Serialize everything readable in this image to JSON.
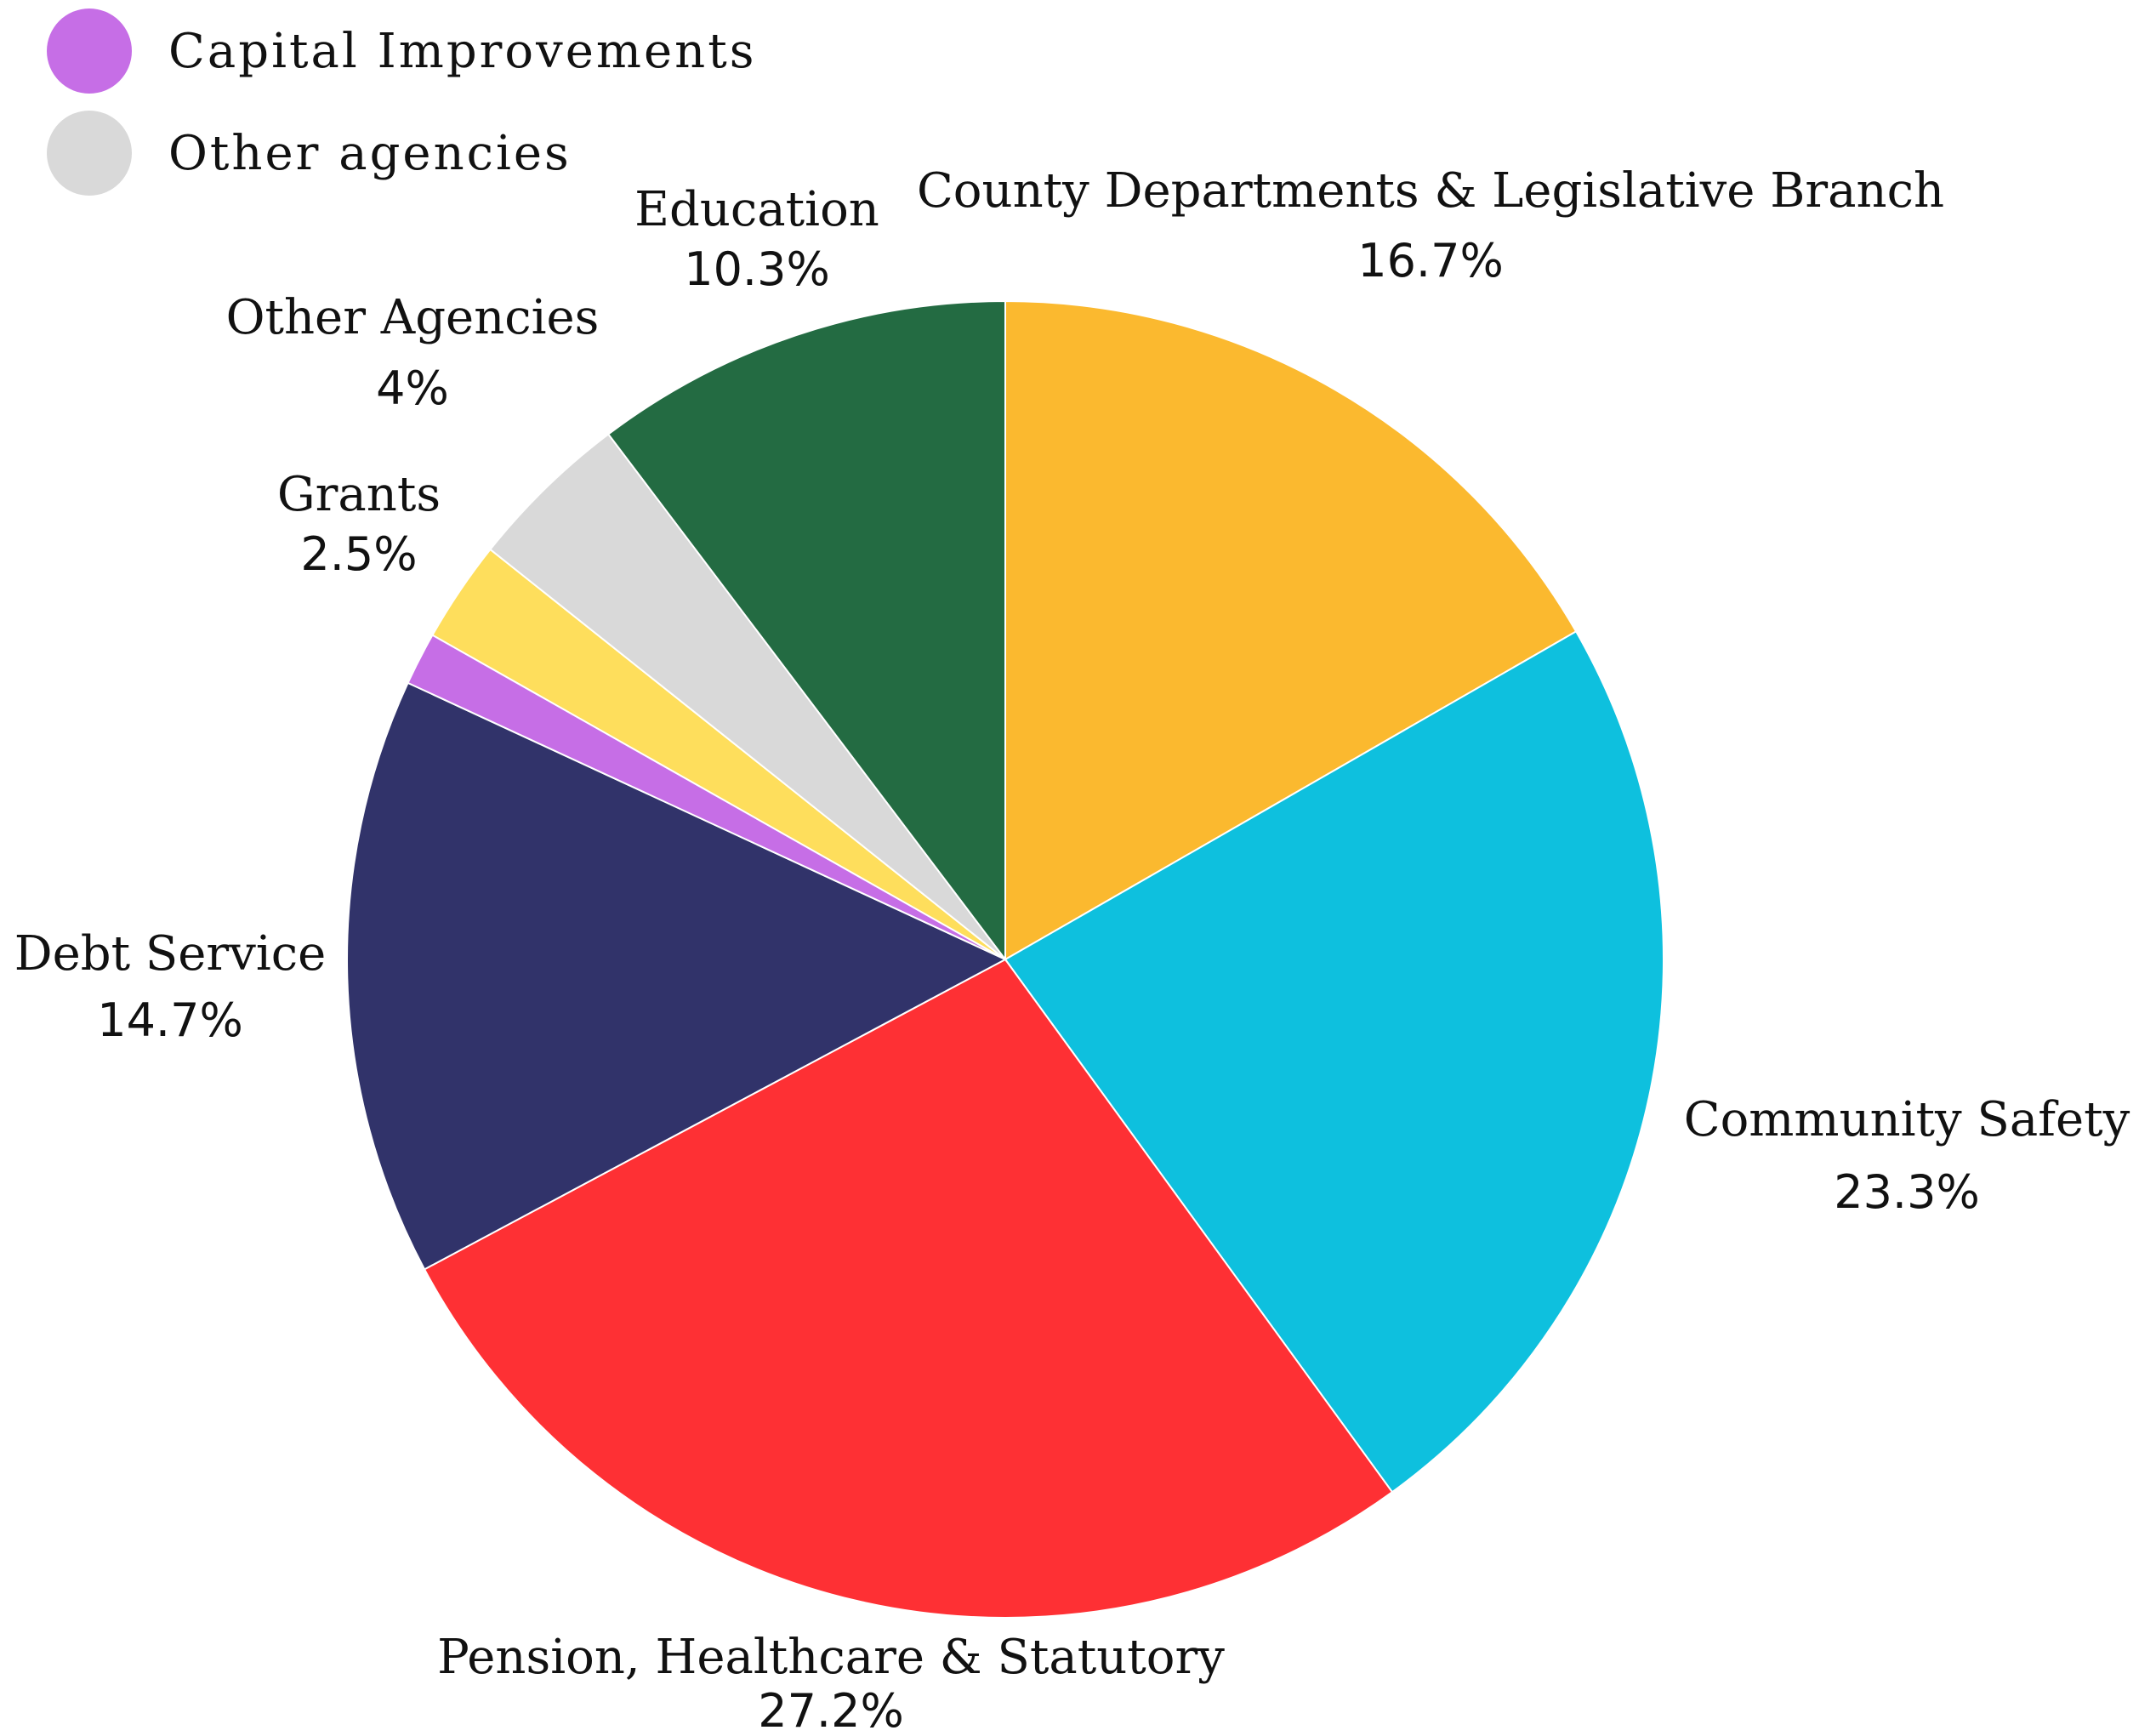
{
  "chart_data": {
    "type": "pie",
    "start_angle_deg": 0,
    "direction": "clockwise",
    "slices": [
      {
        "label": "County Departments & Legislative Branch",
        "value": 16.7,
        "value_label": "16.7%",
        "color": "#FBB92F"
      },
      {
        "label": "Community Safety",
        "value": 23.3,
        "value_label": "23.3%",
        "color": "#0EC0DE"
      },
      {
        "label": "Pension, Healthcare & Statutory",
        "value": 27.2,
        "value_label": "27.2%",
        "color": "#FE3034"
      },
      {
        "label": "Debt Service",
        "value": 14.7,
        "value_label": "14.7%",
        "color": "#31336A"
      },
      {
        "label": "Capital Improvements",
        "value": 1.3,
        "value_label": "",
        "color": "#C66EE6"
      },
      {
        "label": "Grants",
        "value": 2.5,
        "value_label": "2.5%",
        "color": "#FEDE5C"
      },
      {
        "label": "Other Agencies",
        "value": 4,
        "value_label": "4%",
        "color": "#D9D9D9"
      },
      {
        "label": "Education",
        "value": 10.3,
        "value_label": "10.3%",
        "color": "#236B42"
      }
    ],
    "legend": {
      "placement": "top-left",
      "entries": [
        {
          "label": "Capital Improvements",
          "color": "#C66EE6"
        },
        {
          "label": "Other agencies",
          "color": "#D9D9D9"
        }
      ]
    }
  }
}
